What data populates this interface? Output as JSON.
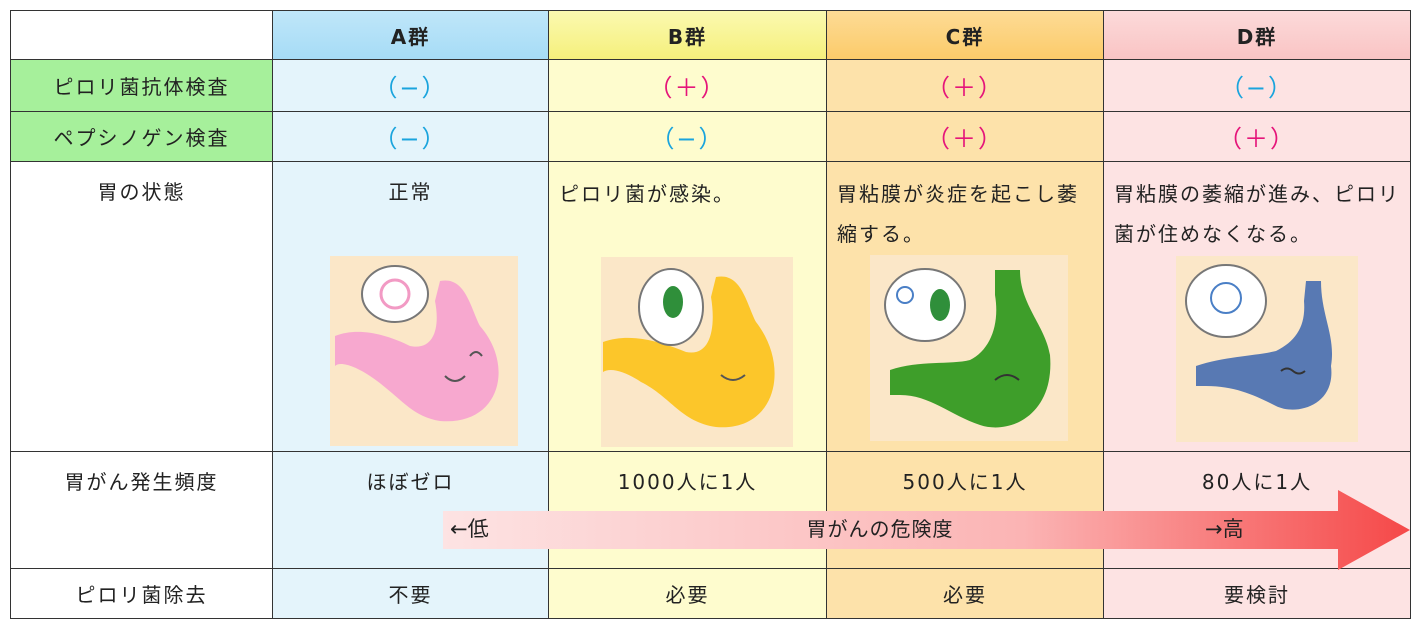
{
  "table": {
    "groups": [
      "A群",
      "B群",
      "C群",
      "D群"
    ],
    "rows": [
      {
        "label": "ピロリ菌抗体検査",
        "cells": [
          "（−）",
          "（＋）",
          "（＋）",
          "（−）"
        ]
      },
      {
        "label": "ペプシノゲン検査",
        "cells": [
          "（−）",
          "（−）",
          "（＋）",
          "（＋）"
        ]
      },
      {
        "label": "胃の状態",
        "cells": [
          "正常",
          "ピロリ菌が感染。",
          "胃粘膜が炎症を起こし萎縮する。",
          "胃粘膜の萎縮が進み、ピロリ菌が住めなくなる。"
        ]
      },
      {
        "label": "胃がん発生頻度",
        "cells": [
          "ほぼゼロ",
          "1000人に1人",
          "500人に1人",
          "80人に1人"
        ]
      },
      {
        "label": "ピロリ菌除去",
        "cells": [
          "不要",
          "必要",
          "必要",
          "要検討"
        ]
      }
    ],
    "risk_arrow": {
      "low": "←低",
      "title": "胃がんの危険度",
      "high": "→高"
    }
  }
}
